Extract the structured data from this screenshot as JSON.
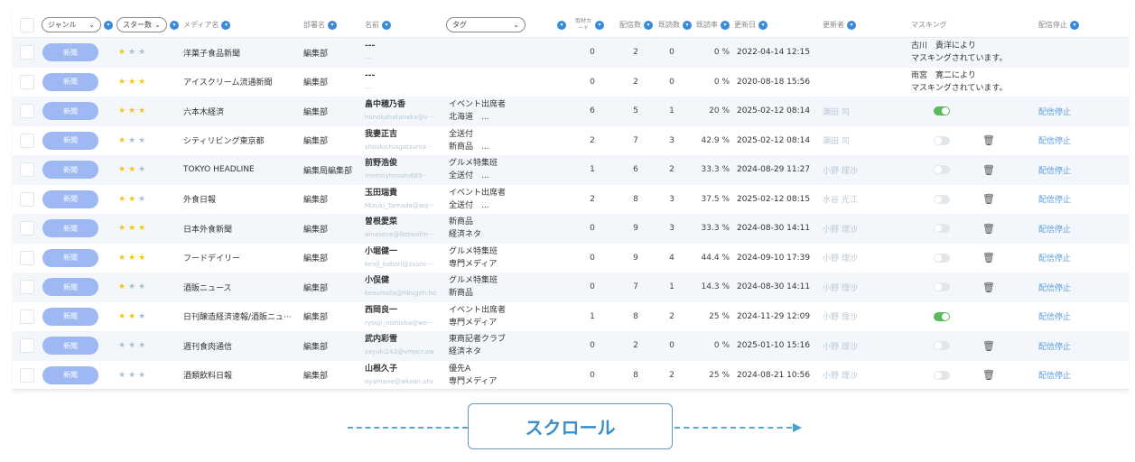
{
  "header": {
    "genre": "ジャンル",
    "stars": "スター数",
    "media": "メディア名",
    "dept": "部署名",
    "name": "名前",
    "tag": "タグ",
    "card": "取材カード",
    "sent": "配信数",
    "read": "既読数",
    "rate": "既読率",
    "updated": "更新日",
    "updater": "更新者",
    "masking": "マスキング",
    "stop": "配信停止"
  },
  "colors": {
    "accent": "#3b8ad9",
    "pill": "#9db8f2",
    "star": "#f5c518",
    "toggle_on": "#5cb85c"
  },
  "rows": [
    {
      "genre": "新聞",
      "stars": 1,
      "media": "洋菓子食品新聞",
      "dept": "編集部",
      "name": "---",
      "email": "---",
      "tag1": "",
      "tag2": "",
      "card": "0",
      "sent": "2",
      "read": "0",
      "rate": "0 %",
      "updated": "2022-04-14 12:15",
      "updater": "",
      "mask1": "古川　貴洋により",
      "mask2": "マスキングされています。",
      "toggle": null,
      "trash": false,
      "stop": ""
    },
    {
      "genre": "新聞",
      "stars": 3,
      "media": "アイスクリーム流通新聞",
      "dept": "編集部",
      "name": "---",
      "email": "---",
      "tag1": "",
      "tag2": "",
      "card": "0",
      "sent": "2",
      "read": "0",
      "rate": "0 %",
      "updated": "2020-08-18 15:56",
      "updater": "",
      "mask1": "雨宮　寛二により",
      "mask2": "マスキングされています。",
      "toggle": null,
      "trash": false,
      "stop": ""
    },
    {
      "genre": "新聞",
      "stars": 3,
      "media": "六本木経済",
      "dept": "編集部",
      "name": "畠中穂乃香",
      "email": "honokahatanaka@v···",
      "tag1": "イベント出席者",
      "tag2": "北海道　...",
      "card": "6",
      "sent": "5",
      "read": "1",
      "rate": "20 %",
      "updated": "2025-02-12 08:14",
      "updater": "瀬田 司",
      "mask1": "",
      "mask2": "",
      "toggle": true,
      "trash": false,
      "stop": "配信停止"
    },
    {
      "genre": "新聞",
      "stars": 1,
      "media": "シティリビング東京都",
      "dept": "編集部",
      "name": "我妻正吉",
      "email": "shoukichiagatsuma···",
      "tag1": "全送付",
      "tag2": "新商品　...",
      "card": "2",
      "sent": "7",
      "read": "3",
      "rate": "42.9 %",
      "updated": "2025-02-12 08:14",
      "updater": "瀬田 司",
      "mask1": "",
      "mask2": "",
      "toggle": false,
      "trash": true,
      "stop": "配信停止"
    },
    {
      "genre": "新聞",
      "stars": 2,
      "media": "TOKYO HEADLINE",
      "dept": "編集局編集部",
      "name": "前野浩俊",
      "email": "memtiyhiroshi689···",
      "tag1": "グルメ特集班",
      "tag2": "全送付　...",
      "card": "1",
      "sent": "6",
      "read": "2",
      "rate": "33.3 %",
      "updated": "2024-08-29 11:27",
      "updater": "小野 理沙",
      "mask1": "",
      "mask2": "",
      "toggle": false,
      "trash": true,
      "stop": "配信停止"
    },
    {
      "genre": "新聞",
      "stars": 2,
      "media": "外食日報",
      "dept": "編集部",
      "name": "玉田瑞貴",
      "email": "Mizuki_Tamada@wq···",
      "tag1": "イベント出席者",
      "tag2": "全送付　...",
      "card": "2",
      "sent": "8",
      "read": "3",
      "rate": "37.5 %",
      "updated": "2025-02-12 08:15",
      "updater": "水谷 光江",
      "mask1": "",
      "mask2": "",
      "toggle": false,
      "trash": true,
      "stop": "配信停止"
    },
    {
      "genre": "新聞",
      "stars": 3,
      "media": "日本外食新聞",
      "dept": "編集部",
      "name": "曽根愛菜",
      "email": "ainasone@fkttwxfm···",
      "tag1": "新商品",
      "tag2": "経済ネタ",
      "card": "0",
      "sent": "9",
      "read": "3",
      "rate": "33.3 %",
      "updated": "2024-08-30 14:11",
      "updater": "小野 理沙",
      "mask1": "",
      "mask2": "",
      "toggle": false,
      "trash": true,
      "stop": "配信停止"
    },
    {
      "genre": "新聞",
      "stars": 3,
      "media": "フードデイリー",
      "dept": "編集部",
      "name": "小堀健一",
      "email": "kenji_kobori@zxunc···",
      "tag1": "グルメ特集班",
      "tag2": "専門メディア",
      "card": "0",
      "sent": "9",
      "read": "4",
      "rate": "44.4 %",
      "updated": "2024-09-10 17:39",
      "updater": "小野 理沙",
      "mask1": "",
      "mask2": "",
      "toggle": false,
      "trash": true,
      "stop": "配信停止"
    },
    {
      "genre": "新聞",
      "stars": 1,
      "media": "酒販ニュース",
      "dept": "編集部",
      "name": "小俣健",
      "email": "kenomata@hbvgeh.ho",
      "tag1": "グルメ特集班",
      "tag2": "新商品",
      "card": "0",
      "sent": "7",
      "read": "1",
      "rate": "14.3 %",
      "updated": "2024-08-30 14:11",
      "updater": "小野 理沙",
      "mask1": "",
      "mask2": "",
      "toggle": false,
      "trash": true,
      "stop": "配信停止"
    },
    {
      "genre": "新聞",
      "stars": 2,
      "media": "日刊醸造経済速報/酒販ニュ···",
      "dept": "編集部",
      "name": "西岡良一",
      "email": "ryouji_nishioka@we···",
      "tag1": "イベント出席者",
      "tag2": "専門メディア",
      "card": "1",
      "sent": "8",
      "read": "2",
      "rate": "25 %",
      "updated": "2024-11-29 12:09",
      "updater": "小野 理沙",
      "mask1": "",
      "mask2": "",
      "toggle": true,
      "trash": false,
      "stop": "配信停止"
    },
    {
      "genre": "新聞",
      "stars": 0,
      "media": "週刊食肉通信",
      "dept": "編集部",
      "name": "武内彩雪",
      "email": "sayuki243@vmpcr.aw",
      "tag1": "東商記者クラブ",
      "tag2": "経済ネタ",
      "card": "0",
      "sent": "2",
      "read": "0",
      "rate": "0 %",
      "updated": "2025-01-10 15:16",
      "updater": "小野 理沙",
      "mask1": "",
      "mask2": "",
      "toggle": false,
      "trash": true,
      "stop": "配信停止"
    },
    {
      "genre": "新聞",
      "stars": 0,
      "media": "酒類飲料日報",
      "dept": "編集部",
      "name": "山根久子",
      "email": "oyamane@wkoon.utv",
      "tag1": "優先A",
      "tag2": "専門メディア",
      "card": "0",
      "sent": "8",
      "read": "2",
      "rate": "25 %",
      "updated": "2024-08-21 10:56",
      "updater": "小野 理沙",
      "mask1": "",
      "mask2": "",
      "toggle": false,
      "trash": true,
      "stop": "配信停止"
    }
  ],
  "scroll": {
    "label": "スクロール"
  }
}
